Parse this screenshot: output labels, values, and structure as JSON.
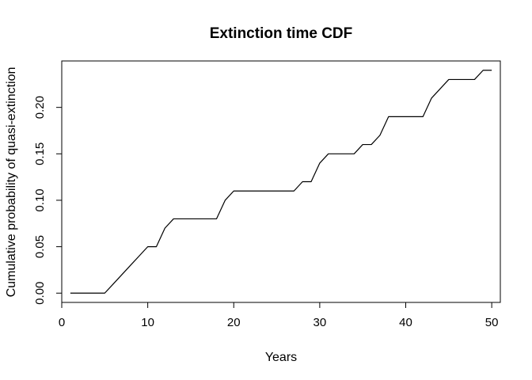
{
  "chart_data": {
    "type": "line",
    "title": "Extinction time CDF",
    "xlabel": "Years",
    "ylabel": "Cumulative probability of quasi-extinction",
    "xlim": [
      0,
      51
    ],
    "ylim": [
      -0.01,
      0.25
    ],
    "xticks": [
      0,
      10,
      20,
      30,
      40,
      50
    ],
    "yticks": [
      0.0,
      0.05,
      0.1,
      0.15,
      0.2
    ],
    "xtick_labels": [
      "0",
      "10",
      "20",
      "30",
      "40",
      "50"
    ],
    "ytick_labels": [
      "0.00",
      "0.05",
      "0.10",
      "0.15",
      "0.20"
    ],
    "grid": false,
    "legend": "none",
    "line_color": "#000000",
    "series": [
      {
        "x": [
          1,
          2,
          3,
          4,
          5,
          6,
          7,
          8,
          9,
          10,
          11,
          12,
          13,
          14,
          15,
          16,
          17,
          18,
          19,
          20,
          21,
          22,
          23,
          24,
          25,
          26,
          27,
          28,
          29,
          30,
          31,
          32,
          33,
          34,
          35,
          36,
          37,
          38,
          39,
          40,
          41,
          42,
          43,
          44,
          45,
          46,
          47,
          48,
          49,
          50
        ],
        "values": [
          0.0,
          0.0,
          0.0,
          0.0,
          0.0,
          0.01,
          0.02,
          0.03,
          0.04,
          0.05,
          0.05,
          0.07,
          0.08,
          0.08,
          0.08,
          0.08,
          0.08,
          0.08,
          0.1,
          0.11,
          0.11,
          0.11,
          0.11,
          0.11,
          0.11,
          0.11,
          0.11,
          0.12,
          0.12,
          0.14,
          0.15,
          0.15,
          0.15,
          0.15,
          0.16,
          0.16,
          0.17,
          0.19,
          0.19,
          0.19,
          0.19,
          0.19,
          0.21,
          0.22,
          0.23,
          0.23,
          0.23,
          0.23,
          0.24,
          0.24
        ]
      }
    ]
  }
}
